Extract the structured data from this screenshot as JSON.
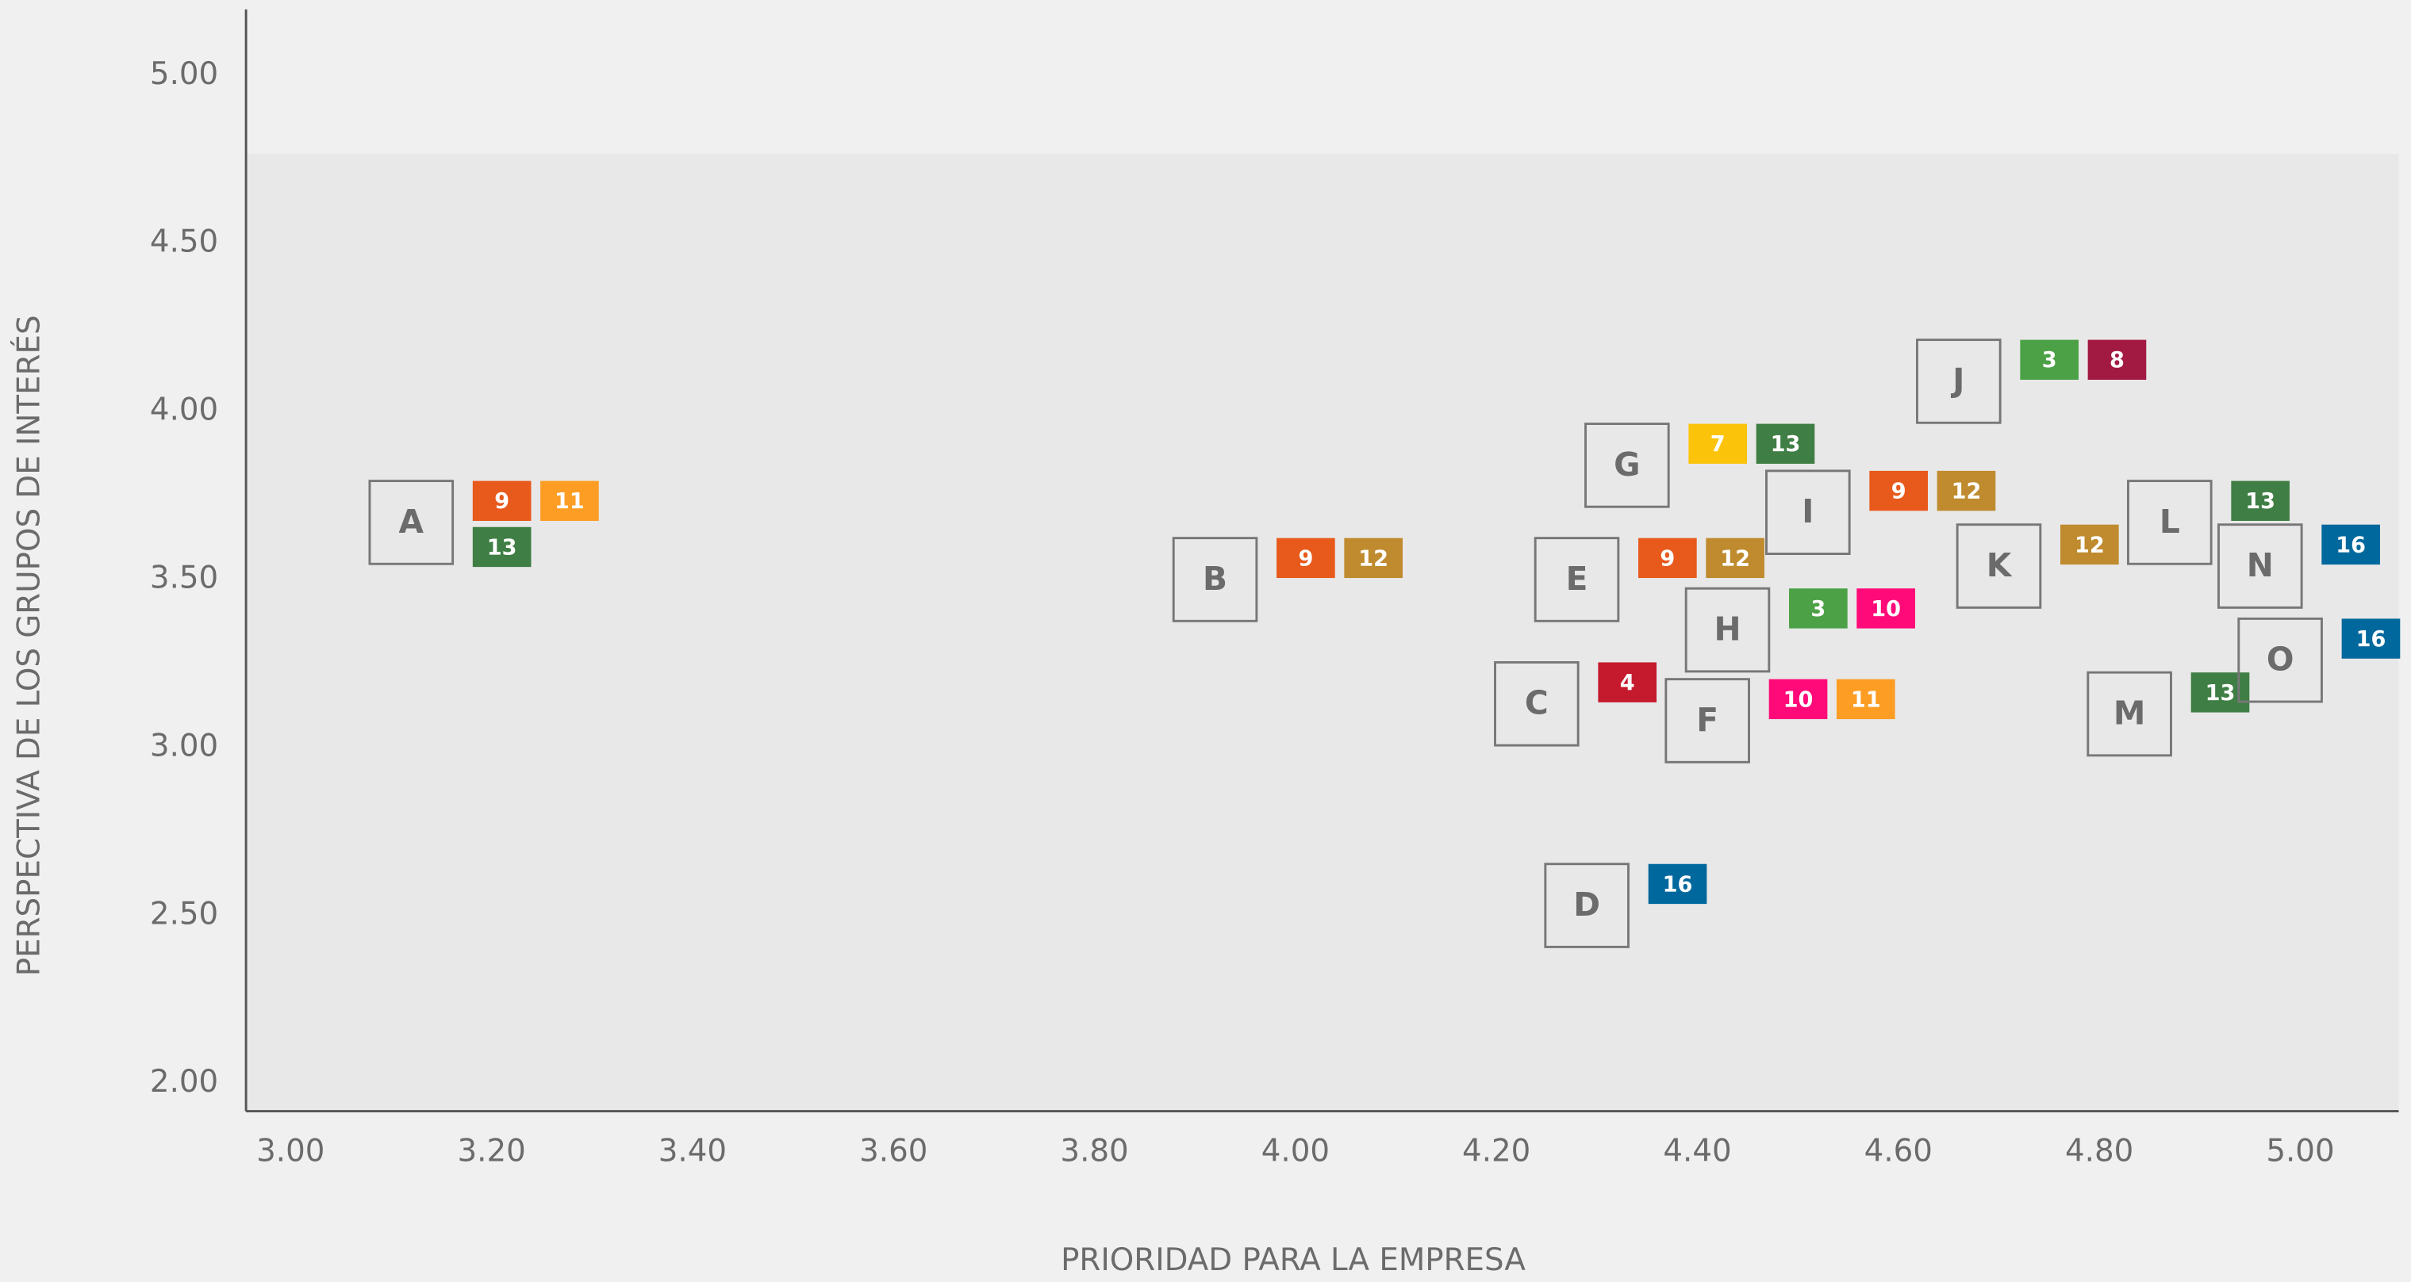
{
  "chart_data": {
    "type": "scatter",
    "x_label": "PRIORIDAD PARA LA EMPRESA",
    "y_label": "PERSPECTIVA DE LOS GRUPOS DE INTERÉS",
    "xlim": [
      3.0,
      5.0
    ],
    "ylim": [
      2.0,
      5.0
    ],
    "xticks": [
      {
        "value": 3.0,
        "label": "3.00"
      },
      {
        "value": 3.2,
        "label": "3.20"
      },
      {
        "value": 3.4,
        "label": "3.40"
      },
      {
        "value": 3.6,
        "label": "3.60"
      },
      {
        "value": 3.8,
        "label": "3.80"
      },
      {
        "value": 4.0,
        "label": "4.00"
      },
      {
        "value": 4.2,
        "label": "4.20"
      },
      {
        "value": 4.4,
        "label": "4.40"
      },
      {
        "value": 4.6,
        "label": "4.60"
      },
      {
        "value": 4.8,
        "label": "4.80"
      },
      {
        "value": 5.0,
        "label": "5.00"
      }
    ],
    "yticks": [
      {
        "value": 2.0,
        "label": "2.00"
      },
      {
        "value": 2.5,
        "label": "2.50"
      },
      {
        "value": 3.0,
        "label": "3.00"
      },
      {
        "value": 3.5,
        "label": "3.50"
      },
      {
        "value": 4.0,
        "label": "4.00"
      },
      {
        "value": 4.5,
        "label": "4.50"
      },
      {
        "value": 5.0,
        "label": "5.00"
      }
    ],
    "sdg_colors": {
      "3": "#4ca146",
      "4": "#c5192d",
      "7": "#fcc30b",
      "8": "#a21942",
      "9": "#e8591c",
      "10": "#ff0a78",
      "11": "#fd9d24",
      "12": "#bf8b2e",
      "13": "#3f7e44",
      "16": "#00689d"
    },
    "points": [
      {
        "label": "A",
        "x": 3.12,
        "y": 3.67,
        "sdgs": [
          9,
          11,
          13
        ]
      },
      {
        "label": "B",
        "x": 3.92,
        "y": 3.5,
        "sdgs": [
          9,
          12
        ]
      },
      {
        "label": "C",
        "x": 4.24,
        "y": 3.13,
        "sdgs": [
          4
        ]
      },
      {
        "label": "D",
        "x": 4.29,
        "y": 2.53,
        "sdgs": [
          16
        ]
      },
      {
        "label": "E",
        "x": 4.28,
        "y": 3.5,
        "sdgs": [
          9,
          12
        ]
      },
      {
        "label": "F",
        "x": 4.41,
        "y": 3.08,
        "sdgs": [
          10,
          11
        ]
      },
      {
        "label": "G",
        "x": 4.33,
        "y": 3.84,
        "sdgs": [
          7,
          13
        ]
      },
      {
        "label": "H",
        "x": 4.43,
        "y": 3.35,
        "sdgs": [
          3,
          10
        ]
      },
      {
        "label": "I",
        "x": 4.51,
        "y": 3.7,
        "sdgs": [
          9,
          12
        ]
      },
      {
        "label": "J",
        "x": 4.66,
        "y": 4.09,
        "sdgs": [
          3,
          8
        ]
      },
      {
        "label": "K",
        "x": 4.7,
        "y": 3.54,
        "sdgs": [
          12
        ]
      },
      {
        "label": "L",
        "x": 4.87,
        "y": 3.67,
        "sdgs": [
          13
        ]
      },
      {
        "label": "M",
        "x": 4.83,
        "y": 3.1,
        "sdgs": [
          13
        ]
      },
      {
        "label": "N",
        "x": 4.96,
        "y": 3.54,
        "sdgs": [
          16
        ]
      },
      {
        "label": "O",
        "x": 4.98,
        "y": 3.26,
        "sdgs": [
          16
        ]
      }
    ]
  }
}
